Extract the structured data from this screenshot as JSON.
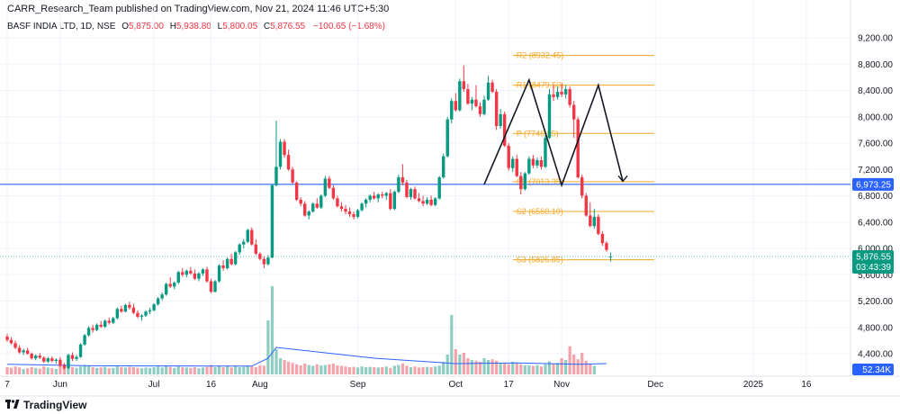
{
  "header": {
    "published_line": "CARR_Research_Team published on TradingView.com, Nov 21, 2024 11:46 UTC+5:30"
  },
  "legend": {
    "symbol": "BASF INDIA LTD, 1D, NSE",
    "o_label": "O",
    "o_value": "5,875.00",
    "h_label": "H",
    "h_value": "5,938.80",
    "l_label": "L",
    "l_value": "5,800.05",
    "c_label": "C",
    "c_value": "5,876.55",
    "change": "−100.65 (−1.68%)"
  },
  "footer": {
    "brand": "TradingView"
  },
  "colors": {
    "up": "#089981",
    "down": "#f23645",
    "vol_up": "#8fcdc3",
    "vol_down": "#f5a3aa",
    "pivot": "#f5a623",
    "hline": "#2962ff",
    "vol_ma": "#2962ff",
    "price_tag": "#089981"
  },
  "chart_data": {
    "type": "candlestick",
    "y_axis": {
      "min": 4150,
      "max": 9400,
      "ticks": [
        4400,
        4800,
        5200,
        5600,
        6000,
        6400,
        6800,
        7200,
        7600,
        8000,
        8400,
        8800,
        9200
      ],
      "tick_labels": [
        "4,400.00",
        "4,800.00",
        "5,200.00",
        "5,600.00",
        "6,000.00",
        "6,400.00",
        "6,800.00",
        "7,200.00",
        "7,600.00",
        "8,000.00",
        "8,400.00",
        "8,800.00",
        "9,200.00"
      ]
    },
    "x_axis": {
      "labels": [
        {
          "i": 0,
          "text": "7"
        },
        {
          "i": 13,
          "text": "Jun"
        },
        {
          "i": 36,
          "text": "Jul"
        },
        {
          "i": 50,
          "text": "16"
        },
        {
          "i": 62,
          "text": "Aug"
        },
        {
          "i": 86,
          "text": "Sep"
        },
        {
          "i": 110,
          "text": "Oct"
        },
        {
          "i": 123,
          "text": "17"
        },
        {
          "i": 136,
          "text": "Nov"
        },
        {
          "i": 159,
          "text": "Dec"
        },
        {
          "i": 183,
          "text": "2025"
        },
        {
          "i": 196,
          "text": "16"
        }
      ]
    },
    "candles": [
      {
        "o": 4660,
        "h": 4700,
        "l": 4580,
        "c": 4610
      },
      {
        "o": 4610,
        "h": 4650,
        "l": 4540,
        "c": 4560
      },
      {
        "o": 4560,
        "h": 4600,
        "l": 4470,
        "c": 4490
      },
      {
        "o": 4490,
        "h": 4530,
        "l": 4400,
        "c": 4420
      },
      {
        "o": 4420,
        "h": 4480,
        "l": 4380,
        "c": 4450
      },
      {
        "o": 4450,
        "h": 4490,
        "l": 4380,
        "c": 4400
      },
      {
        "o": 4400,
        "h": 4420,
        "l": 4310,
        "c": 4330
      },
      {
        "o": 4330,
        "h": 4390,
        "l": 4300,
        "c": 4370
      },
      {
        "o": 4370,
        "h": 4410,
        "l": 4320,
        "c": 4340
      },
      {
        "o": 4340,
        "h": 4360,
        "l": 4260,
        "c": 4280
      },
      {
        "o": 4280,
        "h": 4350,
        "l": 4260,
        "c": 4330
      },
      {
        "o": 4330,
        "h": 4360,
        "l": 4270,
        "c": 4290
      },
      {
        "o": 4290,
        "h": 4330,
        "l": 4250,
        "c": 4310
      },
      {
        "o": 4310,
        "h": 4350,
        "l": 4200,
        "c": 4220
      },
      {
        "o": 4220,
        "h": 4260,
        "l": 4160,
        "c": 4180
      },
      {
        "o": 4180,
        "h": 4400,
        "l": 4170,
        "c": 4380
      },
      {
        "o": 4380,
        "h": 4420,
        "l": 4290,
        "c": 4320
      },
      {
        "o": 4320,
        "h": 4380,
        "l": 4290,
        "c": 4350
      },
      {
        "o": 4350,
        "h": 4560,
        "l": 4340,
        "c": 4540
      },
      {
        "o": 4540,
        "h": 4700,
        "l": 4520,
        "c": 4680
      },
      {
        "o": 4680,
        "h": 4820,
        "l": 4660,
        "c": 4790
      },
      {
        "o": 4790,
        "h": 4840,
        "l": 4720,
        "c": 4760
      },
      {
        "o": 4760,
        "h": 4860,
        "l": 4740,
        "c": 4840
      },
      {
        "o": 4840,
        "h": 4900,
        "l": 4790,
        "c": 4810
      },
      {
        "o": 4810,
        "h": 4920,
        "l": 4790,
        "c": 4900
      },
      {
        "o": 4900,
        "h": 4950,
        "l": 4840,
        "c": 4870
      },
      {
        "o": 4870,
        "h": 4960,
        "l": 4850,
        "c": 4940
      },
      {
        "o": 4940,
        "h": 5100,
        "l": 4920,
        "c": 5080
      },
      {
        "o": 5080,
        "h": 5130,
        "l": 5020,
        "c": 5040
      },
      {
        "o": 5040,
        "h": 5160,
        "l": 5030,
        "c": 5140
      },
      {
        "o": 5140,
        "h": 5190,
        "l": 5070,
        "c": 5100
      },
      {
        "o": 5100,
        "h": 5160,
        "l": 5000,
        "c": 5020
      },
      {
        "o": 5020,
        "h": 5060,
        "l": 4940,
        "c": 4960
      },
      {
        "o": 4960,
        "h": 5000,
        "l": 4900,
        "c": 4980
      },
      {
        "o": 4980,
        "h": 5060,
        "l": 4960,
        "c": 5040
      },
      {
        "o": 5040,
        "h": 5100,
        "l": 5000,
        "c": 5060
      },
      {
        "o": 5060,
        "h": 5170,
        "l": 5040,
        "c": 5150
      },
      {
        "o": 5150,
        "h": 5260,
        "l": 5130,
        "c": 5240
      },
      {
        "o": 5240,
        "h": 5330,
        "l": 5210,
        "c": 5300
      },
      {
        "o": 5300,
        "h": 5480,
        "l": 5280,
        "c": 5460
      },
      {
        "o": 5460,
        "h": 5560,
        "l": 5400,
        "c": 5420
      },
      {
        "o": 5420,
        "h": 5500,
        "l": 5380,
        "c": 5480
      },
      {
        "o": 5480,
        "h": 5660,
        "l": 5460,
        "c": 5640
      },
      {
        "o": 5640,
        "h": 5700,
        "l": 5570,
        "c": 5600
      },
      {
        "o": 5600,
        "h": 5680,
        "l": 5560,
        "c": 5660
      },
      {
        "o": 5660,
        "h": 5720,
        "l": 5600,
        "c": 5620
      },
      {
        "o": 5620,
        "h": 5680,
        "l": 5520,
        "c": 5540
      },
      {
        "o": 5540,
        "h": 5640,
        "l": 5500,
        "c": 5620
      },
      {
        "o": 5620,
        "h": 5700,
        "l": 5580,
        "c": 5680
      },
      {
        "o": 5680,
        "h": 5720,
        "l": 5480,
        "c": 5500
      },
      {
        "o": 5500,
        "h": 5540,
        "l": 5320,
        "c": 5340
      },
      {
        "o": 5340,
        "h": 5520,
        "l": 5330,
        "c": 5500
      },
      {
        "o": 5500,
        "h": 5760,
        "l": 5480,
        "c": 5740
      },
      {
        "o": 5740,
        "h": 5820,
        "l": 5660,
        "c": 5700
      },
      {
        "o": 5700,
        "h": 5860,
        "l": 5680,
        "c": 5840
      },
      {
        "o": 5840,
        "h": 5920,
        "l": 5740,
        "c": 5760
      },
      {
        "o": 5760,
        "h": 5960,
        "l": 5740,
        "c": 5940
      },
      {
        "o": 5940,
        "h": 6080,
        "l": 5900,
        "c": 6060
      },
      {
        "o": 6060,
        "h": 6140,
        "l": 6000,
        "c": 6100
      },
      {
        "o": 6100,
        "h": 6300,
        "l": 6080,
        "c": 6280
      },
      {
        "o": 6280,
        "h": 6320,
        "l": 6040,
        "c": 6060
      },
      {
        "o": 6060,
        "h": 6140,
        "l": 5900,
        "c": 5920
      },
      {
        "o": 5920,
        "h": 5940,
        "l": 5820,
        "c": 5840
      },
      {
        "o": 5840,
        "h": 5880,
        "l": 5700,
        "c": 5760
      },
      {
        "o": 5760,
        "h": 5900,
        "l": 5740,
        "c": 5860
      },
      {
        "o": 5860,
        "h": 6980,
        "l": 5850,
        "c": 6960
      },
      {
        "o": 6960,
        "h": 7940,
        "l": 6940,
        "c": 7240
      },
      {
        "o": 7240,
        "h": 7660,
        "l": 7200,
        "c": 7620
      },
      {
        "o": 7620,
        "h": 7660,
        "l": 7380,
        "c": 7420
      },
      {
        "o": 7420,
        "h": 7500,
        "l": 7180,
        "c": 7200
      },
      {
        "o": 7200,
        "h": 7240,
        "l": 6980,
        "c": 7000
      },
      {
        "o": 7000,
        "h": 7020,
        "l": 6720,
        "c": 6740
      },
      {
        "o": 6740,
        "h": 6780,
        "l": 6640,
        "c": 6680
      },
      {
        "o": 6680,
        "h": 6720,
        "l": 6480,
        "c": 6500
      },
      {
        "o": 6500,
        "h": 6580,
        "l": 6440,
        "c": 6560
      },
      {
        "o": 6560,
        "h": 6700,
        "l": 6540,
        "c": 6680
      },
      {
        "o": 6680,
        "h": 6760,
        "l": 6600,
        "c": 6620
      },
      {
        "o": 6620,
        "h": 6820,
        "l": 6600,
        "c": 6800
      },
      {
        "o": 6800,
        "h": 7100,
        "l": 6780,
        "c": 7060
      },
      {
        "o": 7060,
        "h": 7100,
        "l": 6900,
        "c": 6920
      },
      {
        "o": 6920,
        "h": 6960,
        "l": 6740,
        "c": 6760
      },
      {
        "o": 6760,
        "h": 6800,
        "l": 6620,
        "c": 6640
      },
      {
        "o": 6640,
        "h": 6700,
        "l": 6560,
        "c": 6600
      },
      {
        "o": 6600,
        "h": 6660,
        "l": 6520,
        "c": 6560
      },
      {
        "o": 6560,
        "h": 6620,
        "l": 6480,
        "c": 6520
      },
      {
        "o": 6520,
        "h": 6560,
        "l": 6440,
        "c": 6480
      },
      {
        "o": 6480,
        "h": 6600,
        "l": 6460,
        "c": 6580
      },
      {
        "o": 6580,
        "h": 6700,
        "l": 6560,
        "c": 6680
      },
      {
        "o": 6680,
        "h": 6760,
        "l": 6620,
        "c": 6740
      },
      {
        "o": 6740,
        "h": 6820,
        "l": 6700,
        "c": 6800
      },
      {
        "o": 6800,
        "h": 6860,
        "l": 6740,
        "c": 6760
      },
      {
        "o": 6760,
        "h": 6840,
        "l": 6700,
        "c": 6820
      },
      {
        "o": 6820,
        "h": 6860,
        "l": 6760,
        "c": 6800
      },
      {
        "o": 6800,
        "h": 6860,
        "l": 6740,
        "c": 6840
      },
      {
        "o": 6840,
        "h": 6900,
        "l": 6580,
        "c": 6600
      },
      {
        "o": 6600,
        "h": 6880,
        "l": 6580,
        "c": 6860
      },
      {
        "o": 6860,
        "h": 7120,
        "l": 6840,
        "c": 7080
      },
      {
        "o": 7080,
        "h": 7280,
        "l": 6960,
        "c": 7000
      },
      {
        "o": 7000,
        "h": 7040,
        "l": 6760,
        "c": 6780
      },
      {
        "o": 6780,
        "h": 6920,
        "l": 6740,
        "c": 6900
      },
      {
        "o": 6900,
        "h": 6940,
        "l": 6740,
        "c": 6760
      },
      {
        "o": 6760,
        "h": 6840,
        "l": 6700,
        "c": 6720
      },
      {
        "o": 6720,
        "h": 6800,
        "l": 6640,
        "c": 6680
      },
      {
        "o": 6680,
        "h": 6780,
        "l": 6660,
        "c": 6740
      },
      {
        "o": 6740,
        "h": 6800,
        "l": 6640,
        "c": 6660
      },
      {
        "o": 6660,
        "h": 6780,
        "l": 6640,
        "c": 6760
      },
      {
        "o": 6760,
        "h": 7100,
        "l": 6740,
        "c": 7080
      },
      {
        "o": 7080,
        "h": 7440,
        "l": 7060,
        "c": 7400
      },
      {
        "o": 7400,
        "h": 8000,
        "l": 7380,
        "c": 7960
      },
      {
        "o": 7960,
        "h": 8280,
        "l": 7900,
        "c": 8240
      },
      {
        "o": 8240,
        "h": 8360,
        "l": 8080,
        "c": 8100
      },
      {
        "o": 8100,
        "h": 8580,
        "l": 8080,
        "c": 8540
      },
      {
        "o": 8540,
        "h": 8780,
        "l": 8380,
        "c": 8420
      },
      {
        "o": 8420,
        "h": 8500,
        "l": 8180,
        "c": 8200
      },
      {
        "o": 8200,
        "h": 8300,
        "l": 8100,
        "c": 8260
      },
      {
        "o": 8260,
        "h": 8480,
        "l": 8140,
        "c": 8160
      },
      {
        "o": 8160,
        "h": 8220,
        "l": 8000,
        "c": 8040
      },
      {
        "o": 8040,
        "h": 8320,
        "l": 8020,
        "c": 8260
      },
      {
        "o": 8260,
        "h": 8620,
        "l": 8240,
        "c": 8520
      },
      {
        "o": 8520,
        "h": 8560,
        "l": 8360,
        "c": 8380
      },
      {
        "o": 8380,
        "h": 8420,
        "l": 7800,
        "c": 7860
      },
      {
        "o": 7860,
        "h": 8120,
        "l": 7820,
        "c": 8040
      },
      {
        "o": 8040,
        "h": 8080,
        "l": 7540,
        "c": 7560
      },
      {
        "o": 7560,
        "h": 7600,
        "l": 7180,
        "c": 7220
      },
      {
        "o": 7220,
        "h": 7400,
        "l": 7160,
        "c": 7360
      },
      {
        "o": 7360,
        "h": 7420,
        "l": 7080,
        "c": 7100
      },
      {
        "o": 7100,
        "h": 7160,
        "l": 6820,
        "c": 6900
      },
      {
        "o": 6900,
        "h": 7160,
        "l": 6880,
        "c": 7140
      },
      {
        "o": 7140,
        "h": 7400,
        "l": 7120,
        "c": 7360
      },
      {
        "o": 7360,
        "h": 7420,
        "l": 7220,
        "c": 7260
      },
      {
        "o": 7260,
        "h": 7380,
        "l": 7220,
        "c": 7340
      },
      {
        "o": 7340,
        "h": 7400,
        "l": 7200,
        "c": 7240
      },
      {
        "o": 7240,
        "h": 7720,
        "l": 7220,
        "c": 7680
      },
      {
        "o": 7680,
        "h": 8420,
        "l": 7660,
        "c": 8340
      },
      {
        "o": 8340,
        "h": 8480,
        "l": 8240,
        "c": 8300
      },
      {
        "o": 8300,
        "h": 8460,
        "l": 8260,
        "c": 8380
      },
      {
        "o": 8380,
        "h": 8500,
        "l": 8300,
        "c": 8340
      },
      {
        "o": 8340,
        "h": 8480,
        "l": 8280,
        "c": 8420
      },
      {
        "o": 8420,
        "h": 8460,
        "l": 8140,
        "c": 8180
      },
      {
        "o": 8180,
        "h": 8240,
        "l": 7680,
        "c": 7960
      },
      {
        "o": 7960,
        "h": 8000,
        "l": 7060,
        "c": 7080
      },
      {
        "o": 7080,
        "h": 7120,
        "l": 6760,
        "c": 6800
      },
      {
        "o": 6800,
        "h": 6840,
        "l": 6480,
        "c": 6500
      },
      {
        "o": 6500,
        "h": 6700,
        "l": 6320,
        "c": 6340
      },
      {
        "o": 6340,
        "h": 6600,
        "l": 6300,
        "c": 6480
      },
      {
        "o": 6480,
        "h": 6520,
        "l": 6200,
        "c": 6220
      },
      {
        "o": 6220,
        "h": 6260,
        "l": 6040,
        "c": 6080
      },
      {
        "o": 6080,
        "h": 6110,
        "l": 5950,
        "c": 5977
      },
      {
        "o": 5875,
        "h": 5938.8,
        "l": 5800.05,
        "c": 5876.55
      }
    ],
    "volume": [
      0.2,
      0.18,
      0.22,
      0.19,
      0.15,
      0.17,
      0.2,
      0.18,
      0.16,
      0.22,
      0.19,
      0.17,
      0.15,
      0.25,
      0.28,
      0.33,
      0.2,
      0.18,
      0.22,
      0.26,
      0.24,
      0.2,
      0.18,
      0.19,
      0.21,
      0.17,
      0.18,
      0.22,
      0.2,
      0.19,
      0.21,
      0.2,
      0.18,
      0.17,
      0.19,
      0.18,
      0.2,
      0.22,
      0.19,
      0.24,
      0.21,
      0.18,
      0.22,
      0.2,
      0.19,
      0.18,
      0.2,
      0.17,
      0.19,
      0.21,
      0.26,
      0.2,
      0.23,
      0.2,
      0.22,
      0.19,
      0.24,
      0.2,
      0.21,
      0.23,
      0.22,
      0.2,
      0.25,
      0.24,
      1.5,
      2.45,
      0.7,
      0.45,
      0.4,
      0.35,
      0.32,
      0.28,
      0.25,
      0.3,
      0.26,
      0.24,
      0.28,
      0.25,
      0.26,
      0.28,
      0.3,
      0.25,
      0.24,
      0.22,
      0.2,
      0.21,
      0.19,
      0.22,
      0.2,
      0.21,
      0.2,
      0.19,
      0.2,
      0.22,
      0.18,
      0.24,
      0.26,
      0.3,
      0.24,
      0.2,
      0.22,
      0.19,
      0.2,
      0.21,
      0.2,
      0.22,
      0.24,
      0.35,
      0.55,
      1.65,
      0.7,
      0.55,
      0.6,
      0.45,
      0.4,
      0.38,
      0.35,
      0.45,
      0.4,
      0.42,
      0.38,
      0.3,
      0.32,
      0.28,
      0.35,
      0.3,
      0.28,
      0.26,
      0.25,
      0.24,
      0.26,
      0.22,
      0.28,
      0.36,
      0.3,
      0.32,
      0.45,
      0.4,
      0.78,
      0.55,
      0.42,
      0.6,
      0.38,
      0.3,
      0.24
    ],
    "volume_ma_points": [
      [
        0,
        0.28
      ],
      [
        20,
        0.24
      ],
      [
        60,
        0.23
      ],
      [
        64,
        0.45
      ],
      [
        66,
        0.75
      ],
      [
        90,
        0.45
      ],
      [
        110,
        0.3
      ],
      [
        125,
        0.32
      ],
      [
        140,
        0.28
      ],
      [
        147,
        0.3
      ]
    ],
    "horizontal_line": {
      "value": 6973.25,
      "label": "6,973.25"
    },
    "pivot_levels": [
      {
        "name": "R2",
        "value": 8932.45,
        "label": "R2 (8932.45)"
      },
      {
        "name": "R1",
        "value": 8479.5,
        "label": "R1 (8479.50)"
      },
      {
        "name": "P",
        "value": 7746.25,
        "label": "P (7746.25)"
      },
      {
        "name": "S1",
        "value": 7013.35,
        "label": "S1 (7013.35)"
      },
      {
        "name": "S2",
        "value": 6560.1,
        "label": "S2 (6560.10)"
      },
      {
        "name": "S3",
        "value": 5826.85,
        "label": "S3 (5826.85)"
      }
    ],
    "pattern_line": [
      [
        117,
        6973
      ],
      [
        128,
        8560
      ],
      [
        136,
        6960
      ],
      [
        145,
        8480
      ],
      [
        151,
        7020
      ]
    ],
    "last_price": {
      "value": 5876.55,
      "label": "5,876.55",
      "countdown": "03:43:39"
    },
    "volume_ma_label": "52.34K"
  }
}
